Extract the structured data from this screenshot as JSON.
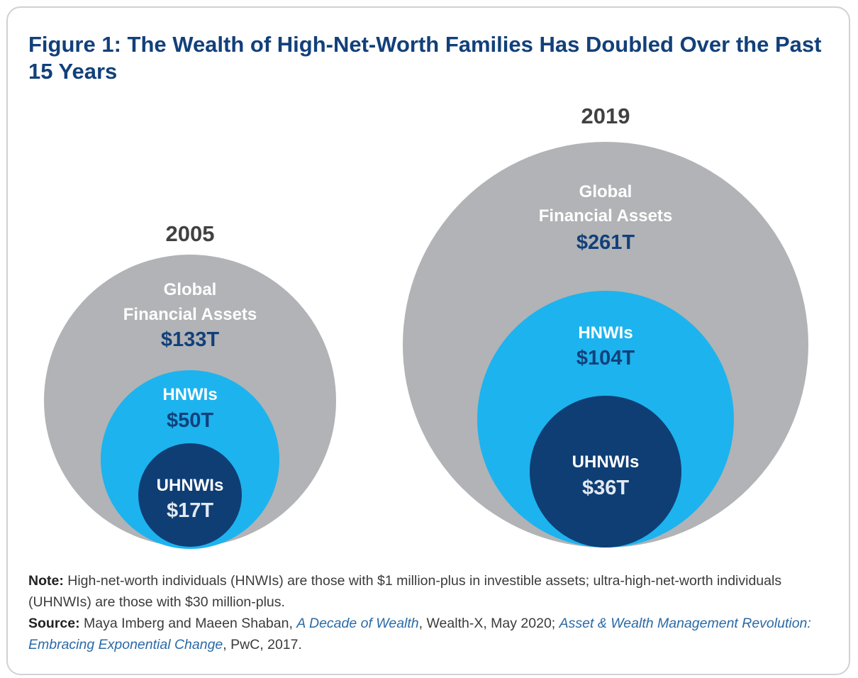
{
  "title": "Figure 1: The Wealth of High-Net-Worth Families Has Doubled Over the Past 15 Years",
  "chart_data": {
    "type": "nested-circles",
    "title": "Figure 1: The Wealth of High-Net-Worth Families Has Doubled Over the Past 15 Years",
    "groups": [
      {
        "year": "2005",
        "circles": [
          {
            "label": "Global Financial Assets",
            "label_lines": [
              "Global",
              "Financial Assets"
            ],
            "value": 133,
            "display": "$133T",
            "color": "#b1b3b6"
          },
          {
            "label": "HNWIs",
            "label_lines": [
              "HNWIs"
            ],
            "value": 50,
            "display": "$50T",
            "color": "#1db3ee"
          },
          {
            "label": "UHNWIs",
            "label_lines": [
              "UHNWIs"
            ],
            "value": 17,
            "display": "$17T",
            "color": "#0f3e75"
          }
        ]
      },
      {
        "year": "2019",
        "circles": [
          {
            "label": "Global Financial Assets",
            "label_lines": [
              "Global",
              "Financial Assets"
            ],
            "value": 261,
            "display": "$261T",
            "color": "#b1b3b6"
          },
          {
            "label": "HNWIs",
            "label_lines": [
              "HNWIs"
            ],
            "value": 104,
            "display": "$104T",
            "color": "#1db3ee"
          },
          {
            "label": "UHNWIs",
            "label_lines": [
              "UHNWIs"
            ],
            "value": 36,
            "display": "$36T",
            "color": "#0f3e75"
          }
        ]
      }
    ],
    "unit": "trillion USD"
  },
  "note": {
    "label": "Note:",
    "text": " High-net-worth individuals (HNWIs) are those with $1 million-plus in investible assets; ultra-high-net-worth individuals (UHNWIs) are those with $30 million-plus."
  },
  "source": {
    "label": "Source:",
    "part1": " Maya Imberg and Maeen Shaban, ",
    "link1": "A Decade of Wealth",
    "part2": ", Wealth-X, May 2020; ",
    "link2": "Asset & Wealth Management Revolution: Embracing Exponential Change",
    "part3": ", PwC, 2017."
  },
  "colors": {
    "title": "#12407a",
    "year": "#414142",
    "label_light": "#ffffff",
    "value_dark": "#12407a",
    "value_light": "#e2e9f2"
  }
}
